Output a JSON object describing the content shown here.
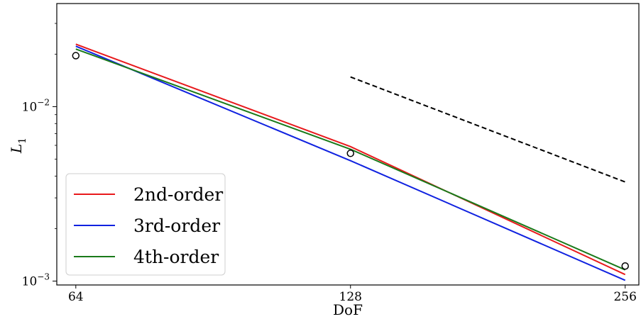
{
  "chart_data": {
    "type": "line",
    "x_scale": "log2",
    "y_scale": "log10",
    "xlabel": "DoF",
    "ylabel": "L",
    "ylabel_subscript": "1",
    "xlim": [
      61,
      265
    ],
    "ylim": [
      0.00095,
      0.039
    ],
    "x_ticks": [
      64,
      128,
      256
    ],
    "x_tick_labels": [
      "64",
      "128",
      "256"
    ],
    "y_ticks": [
      0.01,
      0.001
    ],
    "y_tick_labels": [
      {
        "base": "10",
        "exp": "−2"
      },
      {
        "base": "10",
        "exp": "−3"
      }
    ],
    "grid": false,
    "legend_position": "lower-left",
    "series": [
      {
        "name": "2nd-order",
        "color": "#e8191c",
        "x": [
          64,
          128,
          256
        ],
        "y": [
          0.0228,
          0.0059,
          0.00109
        ]
      },
      {
        "name": "3rd-order",
        "color": "#1022e0",
        "x": [
          64,
          128,
          256
        ],
        "y": [
          0.0222,
          0.0049,
          0.00101
        ]
      },
      {
        "name": "4th-order",
        "color": "#1a7a1a",
        "x": [
          64,
          128,
          256
        ],
        "y": [
          0.0214,
          0.0057,
          0.00116
        ]
      }
    ],
    "reference_line": {
      "style": "dashed",
      "color": "#000000",
      "x": [
        128,
        256
      ],
      "y": [
        0.0148,
        0.0037
      ]
    },
    "markers": {
      "style": "open-circle",
      "color": "#000000",
      "x": [
        64,
        128,
        256
      ],
      "y": [
        0.0196,
        0.0054,
        0.00122
      ]
    }
  }
}
